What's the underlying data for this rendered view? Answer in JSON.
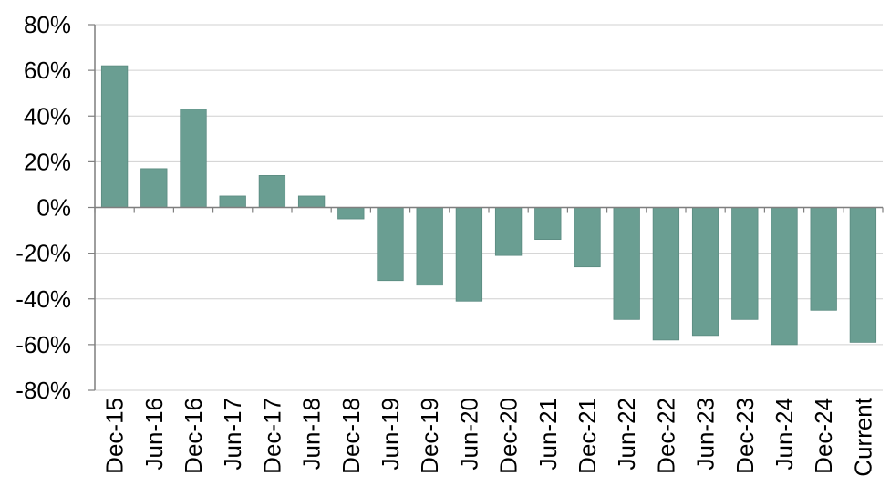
{
  "chart_data": {
    "type": "bar",
    "categories": [
      "Dec-15",
      "Jun-16",
      "Dec-16",
      "Jun-17",
      "Dec-17",
      "Jun-18",
      "Dec-18",
      "Jun-19",
      "Dec-19",
      "Jun-20",
      "Dec-20",
      "Jun-21",
      "Dec-21",
      "Jun-22",
      "Dec-22",
      "Jun-23",
      "Dec-23",
      "Jun-24",
      "Dec-24",
      "Current"
    ],
    "values": [
      62,
      17,
      43,
      5,
      14,
      5,
      -5,
      -32,
      -34,
      -41,
      -21,
      -14,
      -26,
      -49,
      -58,
      -56,
      -49,
      -60,
      -45,
      -59
    ],
    "y_ticks": [
      "80%",
      "60%",
      "40%",
      "20%",
      "0%",
      "-20%",
      "-40%",
      "-60%",
      "-80%"
    ],
    "ylim": [
      -80,
      80
    ],
    "grid": true,
    "bar_color": "#6a9e92",
    "title": "",
    "xlabel": "",
    "ylabel": ""
  }
}
